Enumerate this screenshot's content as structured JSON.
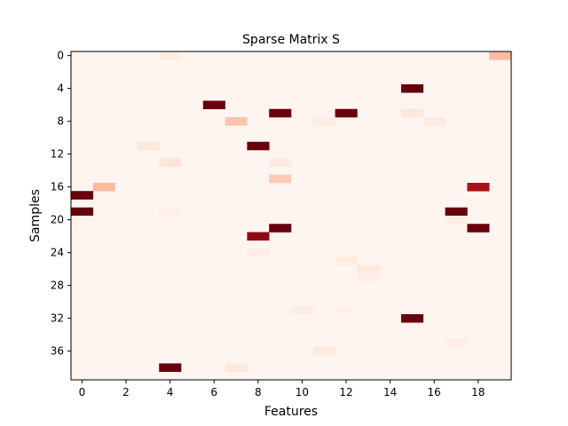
{
  "chart_data": {
    "type": "heatmap",
    "title": "Sparse Matrix S",
    "xlabel": "Features",
    "ylabel": "Samples",
    "n_rows": 40,
    "n_cols": 20,
    "colormap": "Reds",
    "background_color": "#fff5f0",
    "x_ticks": [
      0,
      2,
      4,
      6,
      8,
      10,
      12,
      14,
      16,
      18
    ],
    "y_ticks": [
      0,
      4,
      8,
      12,
      16,
      20,
      24,
      28,
      32,
      36
    ],
    "value_range": [
      0,
      1
    ],
    "cells": [
      {
        "row": 0,
        "col": 4,
        "value": 0.05
      },
      {
        "row": 0,
        "col": 19,
        "value": 0.25
      },
      {
        "row": 4,
        "col": 15,
        "value": 1.0
      },
      {
        "row": 6,
        "col": 6,
        "value": 1.0
      },
      {
        "row": 7,
        "col": 9,
        "value": 1.0
      },
      {
        "row": 7,
        "col": 12,
        "value": 1.0
      },
      {
        "row": 7,
        "col": 15,
        "value": 0.08
      },
      {
        "row": 8,
        "col": 7,
        "value": 0.22
      },
      {
        "row": 8,
        "col": 11,
        "value": 0.05
      },
      {
        "row": 8,
        "col": 16,
        "value": 0.06
      },
      {
        "row": 11,
        "col": 3,
        "value": 0.08
      },
      {
        "row": 11,
        "col": 8,
        "value": 1.0
      },
      {
        "row": 13,
        "col": 4,
        "value": 0.1
      },
      {
        "row": 13,
        "col": 9,
        "value": 0.07
      },
      {
        "row": 15,
        "col": 9,
        "value": 0.2
      },
      {
        "row": 16,
        "col": 1,
        "value": 0.25
      },
      {
        "row": 16,
        "col": 18,
        "value": 0.85
      },
      {
        "row": 17,
        "col": 0,
        "value": 1.0
      },
      {
        "row": 19,
        "col": 0,
        "value": 1.0
      },
      {
        "row": 19,
        "col": 4,
        "value": 0.03
      },
      {
        "row": 19,
        "col": 17,
        "value": 1.0
      },
      {
        "row": 20,
        "col": 0,
        "value": 0.02
      },
      {
        "row": 20,
        "col": 17,
        "value": 0.04
      },
      {
        "row": 21,
        "col": 9,
        "value": 1.0
      },
      {
        "row": 21,
        "col": 18,
        "value": 1.0
      },
      {
        "row": 22,
        "col": 8,
        "value": 0.92
      },
      {
        "row": 24,
        "col": 8,
        "value": 0.04
      },
      {
        "row": 25,
        "col": 12,
        "value": 0.06
      },
      {
        "row": 26,
        "col": 13,
        "value": 0.07
      },
      {
        "row": 27,
        "col": 13,
        "value": 0.04
      },
      {
        "row": 31,
        "col": 10,
        "value": 0.05
      },
      {
        "row": 31,
        "col": 12,
        "value": 0.02
      },
      {
        "row": 32,
        "col": 15,
        "value": 1.0
      },
      {
        "row": 35,
        "col": 17,
        "value": 0.04
      },
      {
        "row": 36,
        "col": 11,
        "value": 0.07
      },
      {
        "row": 38,
        "col": 4,
        "value": 1.0
      },
      {
        "row": 38,
        "col": 7,
        "value": 0.08
      }
    ]
  }
}
